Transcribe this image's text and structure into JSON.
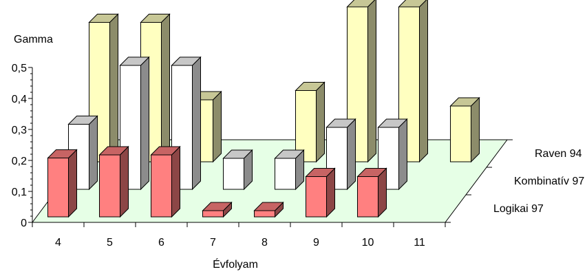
{
  "chart_data": {
    "type": "bar",
    "title": "",
    "ylabel": "Gamma",
    "xlabel": "Évfolyam",
    "categories": [
      "4",
      "5",
      "6",
      "7",
      "8",
      "9",
      "10",
      "11"
    ],
    "ylim": [
      0,
      0.5
    ],
    "yticks": [
      "0",
      "0,1",
      "0,2",
      "0,3",
      "0,4",
      "0,5"
    ],
    "series": [
      {
        "name": "Logikai 97",
        "values": [
          0.19,
          0.2,
          0.2,
          0.02,
          0.02,
          0.13,
          0.13,
          null
        ]
      },
      {
        "name": "Kombinatív 97",
        "values": [
          0.21,
          0.4,
          0.4,
          0.1,
          0.1,
          0.2,
          0.2,
          null
        ]
      },
      {
        "name": "Raven 94",
        "values": [
          0.45,
          0.45,
          0.2,
          null,
          0.23,
          0.5,
          0.5,
          0.18
        ]
      }
    ],
    "colors": {
      "Logikai 97": "#ff8080",
      "Kombinatív 97": "#ffffff",
      "Raven 94": "#ffffc0",
      "floor": "#e6ffe6"
    },
    "grid": false,
    "legend": "depth-axis labels on right"
  }
}
